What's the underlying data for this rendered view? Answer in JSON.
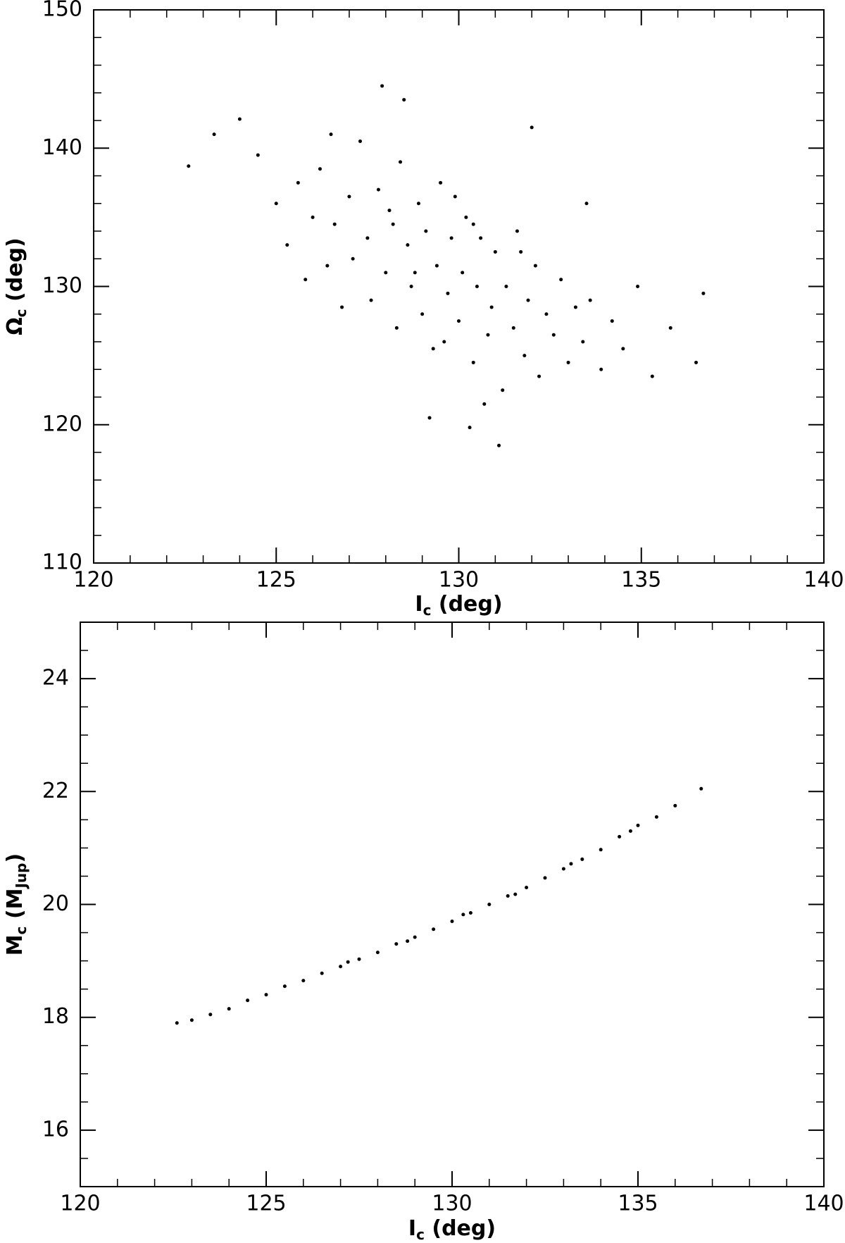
{
  "chart_data": [
    {
      "type": "scatter",
      "x_label": [
        {
          "text": "I"
        },
        {
          "text": "c",
          "sub": true
        },
        {
          "text": " (deg)"
        }
      ],
      "y_label": [
        {
          "text": "Ω"
        },
        {
          "text": "c",
          "sub": true
        },
        {
          "text": " (deg)"
        }
      ],
      "xlim": [
        120,
        140
      ],
      "xticks": [
        120,
        125,
        130,
        135,
        140
      ],
      "x_minor": 5,
      "ylim": [
        110,
        150
      ],
      "yticks": [
        110,
        120,
        130,
        140,
        150
      ],
      "y_minor": 5,
      "color": "#000000",
      "x": [
        122.6,
        123.3,
        124.0,
        124.5,
        125.0,
        125.3,
        125.6,
        125.8,
        126.0,
        126.2,
        126.4,
        126.6,
        126.8,
        127.0,
        127.1,
        127.3,
        127.5,
        127.6,
        127.8,
        128.0,
        128.1,
        128.3,
        128.4,
        128.6,
        128.7,
        128.9,
        129.0,
        129.1,
        129.3,
        129.4,
        129.5,
        129.7,
        129.8,
        130.0,
        130.1,
        130.2,
        130.4,
        130.5,
        130.6,
        130.8,
        130.9,
        131.0,
        131.2,
        131.3,
        131.5,
        131.6,
        131.8,
        131.9,
        132.1,
        132.2,
        132.4,
        132.6,
        132.8,
        133.0,
        133.2,
        133.4,
        133.6,
        133.9,
        134.2,
        134.5,
        134.9,
        135.3,
        135.8,
        136.5,
        136.7,
        128.5,
        129.2,
        130.3,
        131.1,
        127.9,
        132.0,
        129.9,
        130.7,
        128.2,
        131.7,
        126.5,
        133.5,
        129.6,
        130.4,
        128.8
      ],
      "values": [
        138.7,
        141.0,
        142.1,
        139.5,
        136.0,
        133.0,
        137.5,
        130.5,
        135.0,
        138.5,
        131.5,
        134.5,
        128.5,
        136.5,
        132.0,
        140.5,
        133.5,
        129.0,
        137.0,
        131.0,
        135.5,
        127.0,
        139.0,
        133.0,
        130.0,
        136.0,
        128.0,
        134.0,
        125.5,
        131.5,
        137.5,
        129.5,
        133.5,
        127.5,
        131.0,
        135.0,
        124.5,
        130.0,
        133.5,
        126.5,
        128.5,
        132.5,
        122.5,
        130.0,
        127.0,
        134.0,
        125.0,
        129.0,
        131.5,
        123.5,
        128.0,
        126.5,
        130.5,
        124.5,
        128.5,
        126.0,
        129.0,
        124.0,
        127.5,
        125.5,
        130.0,
        123.5,
        127.0,
        124.5,
        129.5,
        143.5,
        120.5,
        119.8,
        118.5,
        144.5,
        141.5,
        136.5,
        121.5,
        134.5,
        132.5,
        141.0,
        136.0,
        126.0,
        134.5,
        131.0
      ]
    },
    {
      "type": "scatter",
      "x_label": [
        {
          "text": "I"
        },
        {
          "text": "c",
          "sub": true
        },
        {
          "text": " (deg)"
        }
      ],
      "y_label": [
        {
          "text": "M"
        },
        {
          "text": "c",
          "sub": true
        },
        {
          "text": " (M"
        },
        {
          "text": "Jup",
          "sub": true
        },
        {
          "text": ")"
        }
      ],
      "xlim": [
        120,
        140
      ],
      "xticks": [
        120,
        125,
        130,
        135,
        140
      ],
      "x_minor": 5,
      "ylim": [
        15,
        25
      ],
      "yticks": [
        16,
        18,
        20,
        22,
        24
      ],
      "y_minor": 4,
      "color": "#000000",
      "x": [
        122.6,
        123.0,
        123.5,
        124.0,
        124.5,
        125.0,
        125.5,
        126.0,
        126.5,
        127.0,
        127.5,
        128.0,
        128.5,
        129.0,
        129.5,
        130.0,
        130.5,
        131.0,
        131.5,
        132.0,
        132.5,
        133.0,
        133.5,
        134.0,
        134.5,
        135.0,
        135.5,
        136.0,
        136.7,
        127.2,
        128.8,
        130.3,
        131.7,
        133.2,
        134.8
      ],
      "values": [
        17.9,
        17.95,
        18.05,
        18.15,
        18.3,
        18.4,
        18.55,
        18.65,
        18.78,
        18.9,
        19.03,
        19.15,
        19.3,
        19.42,
        19.56,
        19.7,
        19.85,
        20.0,
        20.15,
        20.3,
        20.47,
        20.63,
        20.8,
        20.97,
        21.2,
        21.4,
        21.55,
        21.75,
        22.05,
        18.98,
        19.35,
        19.82,
        20.18,
        20.72,
        21.3
      ]
    }
  ]
}
